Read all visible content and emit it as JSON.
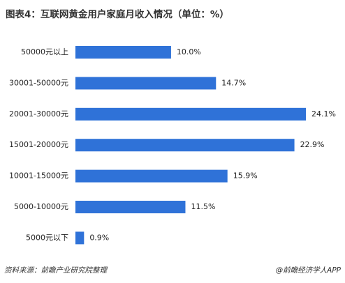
{
  "chart_data": {
    "type": "bar",
    "orientation": "horizontal",
    "title": "图表4：互联网黄金用户家庭月收入情况（单位：%）",
    "categories": [
      "50000元以上",
      "30001-50000元",
      "20001-30000元",
      "15001-20000元",
      "10001-15000元",
      "5000-10000元",
      "5000元以下"
    ],
    "values": [
      10.0,
      14.7,
      24.1,
      22.9,
      15.9,
      11.5,
      0.9
    ],
    "value_labels": [
      "10.0%",
      "14.7%",
      "24.1%",
      "22.9%",
      "15.9%",
      "11.5%",
      "0.9%"
    ],
    "color": "#2f72d8",
    "source": "资料来源：前瞻产业研究院整理",
    "credit": "@前瞻经济学人APP"
  }
}
